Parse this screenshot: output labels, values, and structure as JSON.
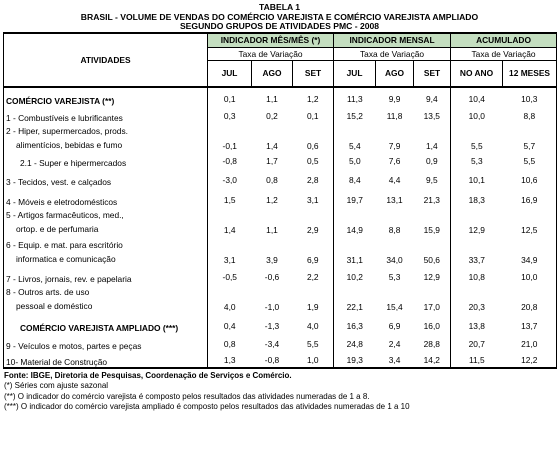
{
  "titles": {
    "line1": "TABELA 1",
    "line2": "BRASIL - VOLUME DE VENDAS DO COMÉRCIO VAREJISTA E COMÉRCIO VAREJISTA AMPLIADO",
    "line3": "SEGUNDO GRUPOS DE ATIVIDADES PMC - 2008"
  },
  "header": {
    "ativ": "ATIVIDADES",
    "g1": "INDICADOR MÊS/MÊS (*)",
    "g2": "INDICADOR MENSAL",
    "g3": "ACUMULADO",
    "tax": "Taxa de Variação",
    "cols": [
      "JUL",
      "AGO",
      "SET",
      "JUL",
      "AGO",
      "SET",
      "NO ANO",
      "12 MESES"
    ]
  },
  "rows": [
    {
      "l1": "COMÉRCIO VAREJISTA (**)",
      "l2": "",
      "v": [
        "0,1",
        "1,1",
        "1,2",
        "11,3",
        "9,9",
        "9,4",
        "10,4",
        "10,3"
      ]
    },
    {
      "l1": "1 - Combustíveis e lubrificantes",
      "l2": "",
      "v": [
        "0,3",
        "0,2",
        "0,1",
        "15,2",
        "11,8",
        "13,5",
        "10,0",
        "8,8"
      ]
    },
    {
      "l1": "2 - Hiper, supermercados, prods.",
      "l2": "alimentícios, bebidas e fumo",
      "v": [
        "-0,1",
        "1,4",
        "0,6",
        "5,4",
        "7,9",
        "1,4",
        "5,5",
        "5,7"
      ]
    },
    {
      "l1": "2.1 - Super e hipermercados",
      "l2": "",
      "v": [
        "-0,8",
        "1,7",
        "0,5",
        "5,0",
        "7,6",
        "0,9",
        "5,3",
        "5,5"
      ]
    },
    {
      "l1": "3 - Tecidos, vest. e calçados",
      "l2": "",
      "v": [
        "-3,0",
        "0,8",
        "2,8",
        "8,4",
        "4,4",
        "9,5",
        "10,1",
        "10,6"
      ]
    },
    {
      "l1": "4 - Móveis e eletrodomésticos",
      "l2": "",
      "v": [
        "1,5",
        "1,2",
        "3,1",
        "19,7",
        "13,1",
        "21,3",
        "18,3",
        "16,9"
      ]
    },
    {
      "l1": "5 - Artigos farmacêuticos, med.,",
      "l2": "ortop. e de perfumaria",
      "v": [
        "1,4",
        "1,1",
        "2,9",
        "14,9",
        "8,8",
        "15,9",
        "12,9",
        "12,5"
      ]
    },
    {
      "l1": "6 - Equip. e mat. para escritório",
      "l2": "informatica e comunicação",
      "v": [
        "3,1",
        "3,9",
        "6,9",
        "31,1",
        "34,0",
        "50,6",
        "33,7",
        "34,9"
      ]
    },
    {
      "l1": "7 - Livros, jornais, rev. e papelaria",
      "l2": "",
      "v": [
        "-0,5",
        "-0,6",
        "2,2",
        "10,2",
        "5,3",
        "12,9",
        "10,8",
        "10,0"
      ]
    },
    {
      "l1": "8 - Outros arts. de uso",
      "l2": "pessoal e doméstico",
      "v": [
        "4,0",
        "-1,0",
        "1,9",
        "22,1",
        "15,4",
        "17,0",
        "20,3",
        "20,8"
      ]
    },
    {
      "l1": "COMÉRCIO VAREJISTA AMPLIADO (***)",
      "l2": "",
      "v": [
        "0,4",
        "-1,3",
        "4,0",
        "16,3",
        "6,9",
        "16,0",
        "13,8",
        "13,7"
      ]
    },
    {
      "l1": "9 - Veículos e motos, partes e peças",
      "l2": "",
      "v": [
        "0,8",
        "-3,4",
        "5,5",
        "24,8",
        "2,4",
        "28,8",
        "20,7",
        "21,0"
      ]
    },
    {
      "l1": "10- Material de Construção",
      "l2": "",
      "v": [
        "1,3",
        "-0,8",
        "1,0",
        "19,3",
        "3,4",
        "14,2",
        "11,5",
        "12,2"
      ]
    }
  ],
  "footer": {
    "source": "Fonte: IBGE, Diretoria de Pesquisas, Coordenação de Serviços e Comércio.",
    "n1": "(*) Séries com ajuste sazonal",
    "n2": "(**) O indicador do comércio varejista é composto pelos resultados das atividades numeradas de 1 a 8.",
    "n3": "(***) O indicador do comércio varejista ampliado é composto pelos resultados das atividades numeradas de 1 a 10"
  }
}
